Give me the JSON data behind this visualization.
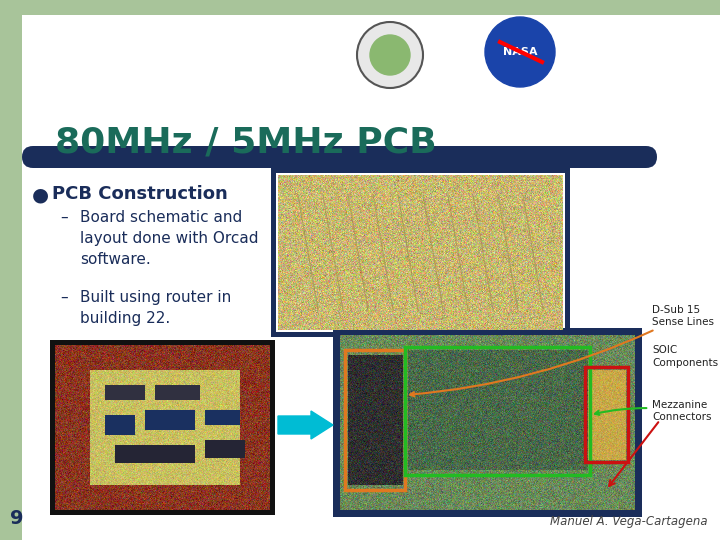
{
  "bg_color": "#ffffff",
  "green_color": "#a8c49a",
  "title": "80MHz / 5MHz PCB",
  "title_color": "#1a6b5a",
  "title_font_size": 26,
  "divider_color": "#1a2d5a",
  "bullet_color": "#1a2d5a",
  "bullet_text": "PCB Construction",
  "bullet_font_size": 13,
  "sub_bullets": [
    "Board schematic and\nlayout done with Orcad\nsoftware.",
    "Built using router in\nbuilding 22."
  ],
  "sub_bullet_font_size": 11,
  "footer_text": "Manuel A. Vega-Cartagena",
  "page_number": "9",
  "arrow_color": "#00bcd4",
  "orange_color": "#e07820",
  "green_ann_color": "#22bb22",
  "red_ann_color": "#cc1111",
  "ann_font_size": 7.5,
  "ann_color": "#222222",
  "img1_border": "#1a2d5a",
  "img3_border": "#1a2d5a",
  "img2_border": "#111111"
}
